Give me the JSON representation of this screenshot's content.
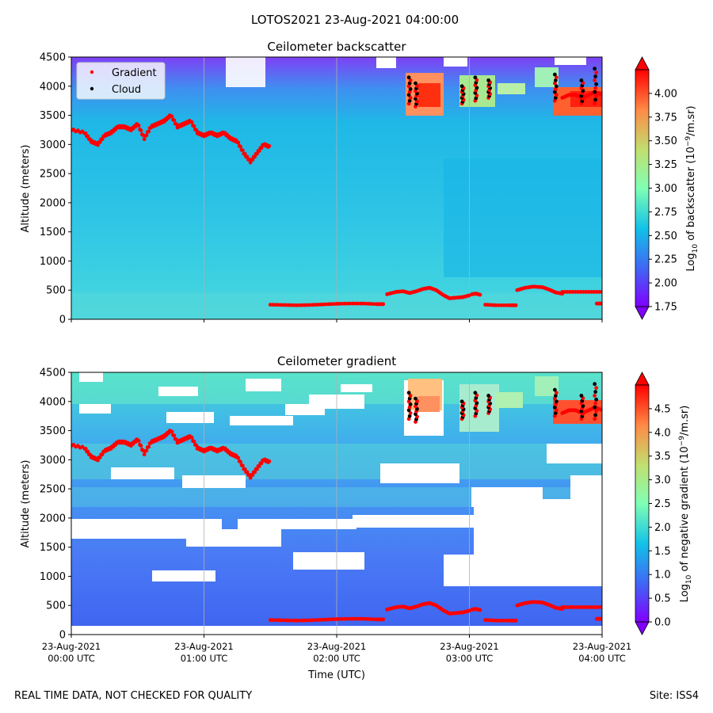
{
  "figure": {
    "title": "LOTOS2021 23-Aug-2021 04:00:00",
    "footer_left": "REAL TIME DATA, NOT CHECKED FOR QUALITY",
    "footer_right": "Site: ISS4"
  },
  "chart_data": [
    {
      "type": "heatmap",
      "title": "Ceilometer backscatter",
      "xlabel": "",
      "ylabel": "Altitude (meters)",
      "xlim": [
        0,
        4
      ],
      "ylim": [
        0,
        4500
      ],
      "yticks": [
        0,
        500,
        1000,
        1500,
        2000,
        2500,
        3000,
        3500,
        4000,
        4500
      ],
      "xticks": [
        0,
        1,
        2,
        3,
        4
      ],
      "grid": "vertical",
      "colorbar": {
        "label_prefix": "Log",
        "label_sub": "10",
        "label_mid": " of backscatter (10",
        "label_sup": "−9",
        "label_suffix": "/m.sr)",
        "range": [
          1.75,
          4.25
        ],
        "ticks": [
          "1.75",
          "2.00",
          "2.25",
          "2.50",
          "2.75",
          "3.00",
          "3.25",
          "3.50",
          "3.75",
          "4.00"
        ],
        "tick_values": [
          1.75,
          2.0,
          2.25,
          2.5,
          2.75,
          3.0,
          3.25,
          3.5,
          3.75,
          4.0
        ],
        "extend": "both"
      },
      "legend": {
        "position": "top-left",
        "entries": [
          "Gradient",
          "Cloud"
        ]
      }
    },
    {
      "type": "heatmap",
      "title": "Ceilometer gradient",
      "xlabel": "Time (UTC)",
      "ylabel": "Altitude (meters)",
      "xlim": [
        0,
        4
      ],
      "ylim": [
        0,
        4500
      ],
      "yticks": [
        0,
        500,
        1000,
        1500,
        2000,
        2500,
        3000,
        3500,
        4000,
        4500
      ],
      "xticks": [
        0,
        1,
        2,
        3,
        4
      ],
      "xtick_labels": [
        [
          "23-Aug-2021",
          "00:00 UTC"
        ],
        [
          "23-Aug-2021",
          "01:00 UTC"
        ],
        [
          "23-Aug-2021",
          "02:00 UTC"
        ],
        [
          "23-Aug-2021",
          "03:00 UTC"
        ],
        [
          "23-Aug-2021",
          "04:00 UTC"
        ]
      ],
      "grid": "vertical",
      "colorbar": {
        "label_prefix": "Log",
        "label_sub": "10",
        "label_mid": " of negative gradient (10",
        "label_sup": "−9",
        "label_suffix": "/m.sr)",
        "range": [
          0,
          5
        ],
        "ticks": [
          "0.0",
          "0.5",
          "1.0",
          "1.5",
          "2.0",
          "2.5",
          "3.0",
          "3.5",
          "4.0",
          "4.5"
        ],
        "tick_values": [
          0,
          0.5,
          1.0,
          1.5,
          2.0,
          2.5,
          3.0,
          3.5,
          4.0,
          4.5
        ],
        "extend": "both"
      }
    }
  ],
  "series": {
    "gradient_upper": {
      "name": "Gradient",
      "x": [
        0.0,
        0.1,
        0.15,
        0.2,
        0.25,
        0.3,
        0.35,
        0.4,
        0.45,
        0.5,
        0.55,
        0.6,
        0.65,
        0.7,
        0.75,
        0.8,
        0.85,
        0.9,
        0.95,
        1.0,
        1.05,
        1.1,
        1.15,
        1.2,
        1.25,
        1.3,
        1.35,
        1.4,
        1.45,
        1.5
      ],
      "y": [
        3250,
        3200,
        3050,
        3000,
        3150,
        3200,
        3300,
        3300,
        3250,
        3350,
        3100,
        3300,
        3350,
        3400,
        3500,
        3300,
        3350,
        3400,
        3200,
        3150,
        3200,
        3150,
        3200,
        3100,
        3050,
        2850,
        2700,
        2850,
        3000,
        2950
      ]
    },
    "gradient_lower": [
      {
        "x": [
          1.5,
          1.6,
          1.7,
          1.8,
          1.9,
          2.0,
          2.1,
          2.2,
          2.3,
          2.35
        ],
        "y": [
          250,
          245,
          240,
          245,
          255,
          265,
          270,
          270,
          260,
          260
        ]
      },
      {
        "x": [
          2.38,
          2.45,
          2.5,
          2.55,
          2.6,
          2.65,
          2.7,
          2.75,
          2.8,
          2.85,
          2.9,
          2.95,
          3.0
        ],
        "y": [
          430,
          470,
          480,
          450,
          480,
          520,
          540,
          500,
          420,
          360,
          370,
          380,
          410
        ]
      },
      {
        "x": [
          3.02,
          3.05,
          3.08
        ],
        "y": [
          430,
          440,
          420
        ]
      },
      {
        "x": [
          3.12,
          3.2,
          3.3,
          3.35
        ],
        "y": [
          250,
          240,
          240,
          240
        ]
      },
      {
        "x": [
          3.36,
          3.42,
          3.48,
          3.55,
          3.6,
          3.65,
          3.7
        ],
        "y": [
          500,
          540,
          560,
          550,
          510,
          460,
          440
        ]
      },
      {
        "x": [
          3.7,
          3.8,
          3.9,
          4.0
        ],
        "y": [
          470,
          470,
          470,
          470
        ]
      },
      {
        "x": [
          3.96,
          4.0
        ],
        "y": [
          270,
          270
        ]
      }
    ],
    "cloud_columns": [
      {
        "x": 2.55,
        "y_from": 3700,
        "y_to": 4150
      },
      {
        "x": 2.6,
        "y_from": 3650,
        "y_to": 4050
      },
      {
        "x": 2.95,
        "y_from": 3700,
        "y_to": 4000
      },
      {
        "x": 3.05,
        "y_from": 3750,
        "y_to": 4150
      },
      {
        "x": 3.15,
        "y_from": 3800,
        "y_to": 4100
      },
      {
        "x": 3.65,
        "y_from": 3750,
        "y_to": 4200
      },
      {
        "x": 3.85,
        "y_from": 3700,
        "y_to": 4100
      },
      {
        "x": 3.95,
        "y_from": 3700,
        "y_to": 4300
      }
    ],
    "cloud_red_band": {
      "x": [
        3.7,
        3.75,
        3.8,
        3.85,
        3.9,
        3.95,
        4.0
      ],
      "y": [
        3800,
        3850,
        3850,
        3800,
        3850,
        3900,
        3850
      ]
    }
  }
}
